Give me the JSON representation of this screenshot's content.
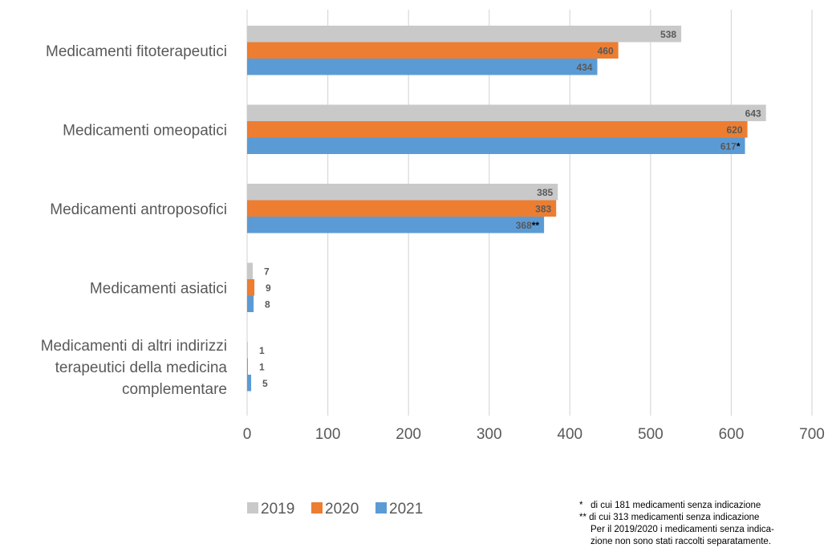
{
  "chart_data": {
    "type": "bar",
    "orientation": "horizontal",
    "categories": [
      "Medicamenti fitoterapeutici",
      "Medicamenti omeopatici",
      "Medicamenti antroposofici",
      "Medicamenti asiatici",
      "Medicamenti di altri indirizzi terapeutici della medicina complementare"
    ],
    "category_label_lines": [
      [
        "Medicamenti fitoterapeutici"
      ],
      [
        "Medicamenti omeopatici"
      ],
      [
        "Medicamenti antroposofici"
      ],
      [
        "Medicamenti asiatici"
      ],
      [
        "Medicamenti di altri indirizzi",
        "terapeutici della medicina",
        "complementare"
      ]
    ],
    "series": [
      {
        "name": "2019",
        "color": "#c9c9c9",
        "values": [
          538,
          643,
          385,
          7,
          1
        ]
      },
      {
        "name": "2020",
        "color": "#ed7d31",
        "values": [
          460,
          620,
          383,
          9,
          1
        ]
      },
      {
        "name": "2021",
        "color": "#5b9bd5",
        "values": [
          434,
          617,
          368,
          8,
          5
        ]
      }
    ],
    "data_label_suffixes": {
      "2021": [
        "",
        "*",
        "**",
        "",
        ""
      ]
    },
    "xlim": [
      0,
      700
    ],
    "xticks": [
      0,
      100,
      200,
      300,
      400,
      500,
      600,
      700
    ],
    "grid": true,
    "legend_position": "bottom-left",
    "title": "",
    "xlabel": "",
    "ylabel": ""
  },
  "footnotes": [
    {
      "mark": "*",
      "text": "di cui 181 medicamenti senza indicazione"
    },
    {
      "mark": "**",
      "text": "di cui 313 medicamenti senza indicazione"
    },
    {
      "mark": "",
      "text": "Per il 2019/2020 i medicamenti senza indica-"
    },
    {
      "mark": "",
      "text": "zione non sono stati raccolti separatamente."
    }
  ]
}
